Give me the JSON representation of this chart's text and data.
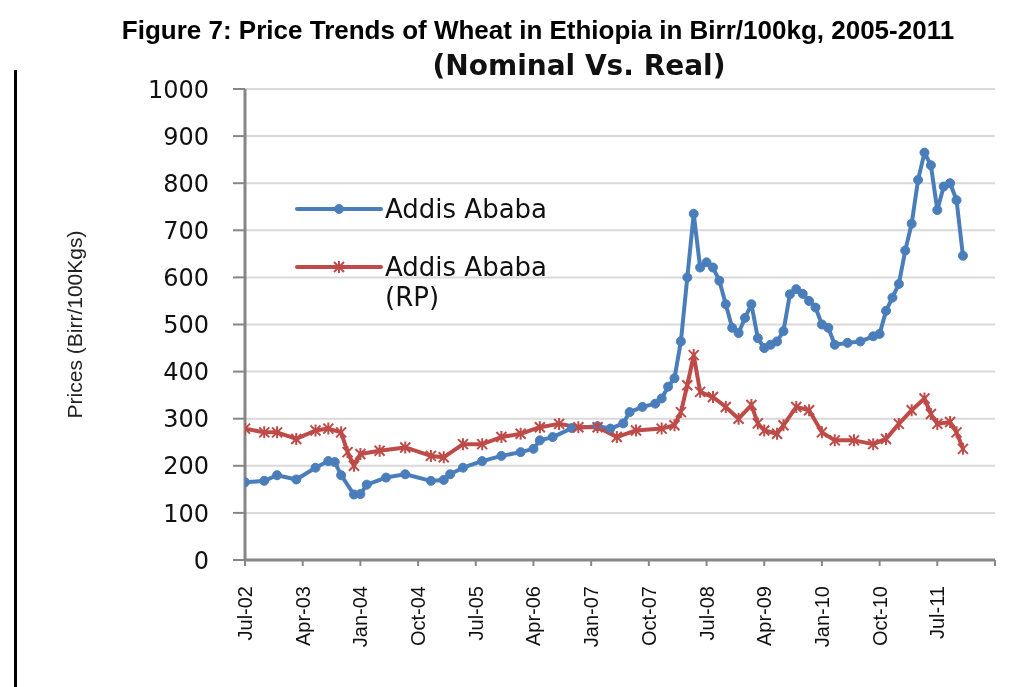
{
  "chart_data": {
    "type": "line",
    "title": "Figure 7: Price Trends of Wheat in Ethiopia in Birr/100kg, 2005-2011",
    "subtitle": "(Nominal Vs. Real)",
    "ylabel": "Prices (Birr/100Kgs)",
    "xlim": [
      "2002-07",
      "2012-04"
    ],
    "xticks": [
      {
        "value": "2002-07",
        "label": "Jul-02"
      },
      {
        "value": "2003-04",
        "label": "Apr-03"
      },
      {
        "value": "2004-01",
        "label": "Jan-04"
      },
      {
        "value": "2004-10",
        "label": "Oct-04"
      },
      {
        "value": "2005-07",
        "label": "Jul-05"
      },
      {
        "value": "2006-04",
        "label": "Apr-06"
      },
      {
        "value": "2007-01",
        "label": "Jan-07"
      },
      {
        "value": "2007-10",
        "label": "Oct-07"
      },
      {
        "value": "2008-07",
        "label": "Jul-08"
      },
      {
        "value": "2009-04",
        "label": "Apr-09"
      },
      {
        "value": "2010-01",
        "label": "Jan-10"
      },
      {
        "value": "2010-10",
        "label": "Oct-10"
      },
      {
        "value": "2011-07",
        "label": "Jul-11"
      },
      {
        "value": "2012-04",
        "label": null
      }
    ],
    "ylim": [
      0,
      1000
    ],
    "yticks": [
      0,
      100,
      200,
      300,
      400,
      500,
      600,
      700,
      800,
      900,
      1000
    ],
    "grid": "y",
    "legend": "top left",
    "line_style": "solid",
    "series": [
      {
        "name": "Addis Ababa",
        "color": "#4a7ebb",
        "marker": "circle",
        "x": [
          "2002-07",
          "2002-10",
          "2002-12",
          "2003-03",
          "2003-06",
          "2003-08",
          "2003-09",
          "2003-10",
          "2003-12",
          "2004-01",
          "2004-02",
          "2004-05",
          "2004-08",
          "2004-12",
          "2005-02",
          "2005-03",
          "2005-05",
          "2005-08",
          "2005-11",
          "2006-02",
          "2006-04",
          "2006-05",
          "2006-07",
          "2006-10",
          "2007-02",
          "2007-04",
          "2007-06",
          "2007-07",
          "2007-09",
          "2007-11",
          "2007-12",
          "2008-01",
          "2008-02",
          "2008-03",
          "2008-04",
          "2008-05",
          "2008-06",
          "2008-07",
          "2008-08",
          "2008-09",
          "2008-10",
          "2008-11",
          "2008-12",
          "2009-01",
          "2009-02",
          "2009-03",
          "2009-04",
          "2009-05",
          "2009-06",
          "2009-07",
          "2009-08",
          "2009-09",
          "2009-10",
          "2009-11",
          "2009-12",
          "2010-01",
          "2010-02",
          "2010-03",
          "2010-05",
          "2010-07",
          "2010-09",
          "2010-10",
          "2010-11",
          "2010-12",
          "2011-01",
          "2011-02",
          "2011-03",
          "2011-04",
          "2011-05",
          "2011-06",
          "2011-07",
          "2011-08",
          "2011-09",
          "2011-10",
          "2011-11"
        ],
        "values": [
          165,
          168,
          180,
          171,
          196,
          210,
          208,
          180,
          139,
          140,
          160,
          175,
          182,
          168,
          170,
          182,
          196,
          210,
          221,
          229,
          236,
          254,
          261,
          280,
          284,
          279,
          290,
          314,
          325,
          332,
          343,
          368,
          386,
          464,
          600,
          735,
          621,
          632,
          621,
          593,
          543,
          493,
          482,
          514,
          543,
          471,
          450,
          457,
          464,
          486,
          564,
          575,
          565,
          550,
          536,
          500,
          493,
          457,
          461,
          464,
          475,
          480,
          529,
          557,
          586,
          657,
          714,
          807,
          865,
          838,
          743,
          793,
          800,
          764,
          646
        ]
      },
      {
        "name": "Addis Ababa (RP)",
        "color": "#be4b48",
        "marker": "cross",
        "x": [
          "2002-07",
          "2002-10",
          "2002-12",
          "2003-03",
          "2003-06",
          "2003-08",
          "2003-10",
          "2003-11",
          "2003-12",
          "2004-01",
          "2004-04",
          "2004-08",
          "2004-12",
          "2005-02",
          "2005-05",
          "2005-08",
          "2005-11",
          "2006-02",
          "2006-05",
          "2006-08",
          "2006-11",
          "2007-02",
          "2007-05",
          "2007-08",
          "2007-12",
          "2008-02",
          "2008-03",
          "2008-04",
          "2008-05",
          "2008-06",
          "2008-08",
          "2008-10",
          "2008-12",
          "2009-02",
          "2009-03",
          "2009-04",
          "2009-06",
          "2009-07",
          "2009-09",
          "2009-11",
          "2010-01",
          "2010-03",
          "2010-06",
          "2010-09",
          "2010-11",
          "2011-01",
          "2011-03",
          "2011-05",
          "2011-06",
          "2011-07",
          "2011-09",
          "2011-10",
          "2011-11"
        ],
        "values": [
          279,
          271,
          271,
          257,
          275,
          279,
          271,
          229,
          200,
          225,
          232,
          239,
          221,
          218,
          246,
          246,
          261,
          268,
          282,
          289,
          282,
          282,
          261,
          275,
          279,
          286,
          314,
          371,
          435,
          357,
          346,
          325,
          300,
          329,
          290,
          275,
          268,
          286,
          325,
          318,
          271,
          254,
          254,
          246,
          257,
          289,
          318,
          343,
          310,
          289,
          293,
          271,
          236
        ]
      }
    ]
  }
}
